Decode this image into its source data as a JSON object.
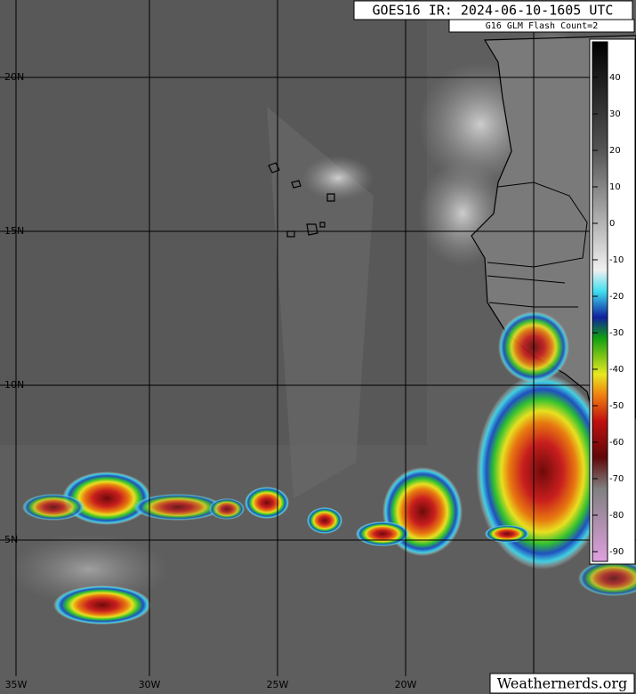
{
  "header": {
    "title": "GOES16 IR: 2024-06-10-1605 UTC",
    "subtitle": "G16 GLM Flash Count=2"
  },
  "latitude_labels": [
    "20N",
    "15N",
    "10N",
    "5N"
  ],
  "longitude_labels": [
    "35W",
    "30W",
    "25W",
    "20W"
  ],
  "colorbar": {
    "ticks": [
      40,
      30,
      20,
      10,
      0,
      -10,
      -20,
      -30,
      -40,
      -50,
      -60,
      -70,
      -80,
      -90
    ]
  },
  "credit": "Weathernerds.org"
}
